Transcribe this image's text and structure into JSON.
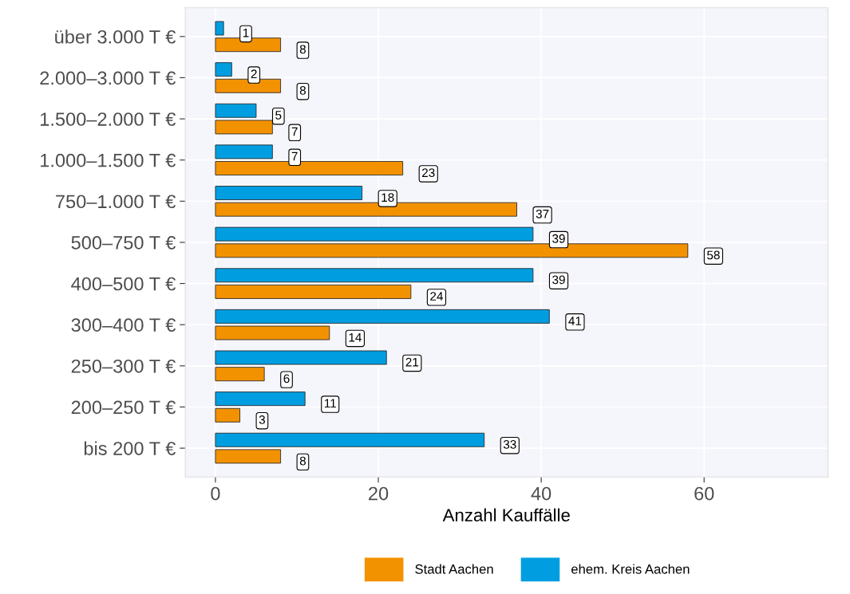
{
  "chart_data": {
    "type": "bar",
    "orientation": "horizontal",
    "xlabel": "Anzahl Kauffälle",
    "categories": [
      "über 3.000 T €",
      "2.000–3.000 T €",
      "1.500–2.000 T €",
      "1.000–1.500 T €",
      "750–1.000 T €",
      "500–750 T €",
      "400–500 T €",
      "300–400 T €",
      "250–300 T €",
      "200–250 T €",
      "bis 200 T €"
    ],
    "series": [
      {
        "name": "Stadt Aachen",
        "color": "#f39200",
        "values": [
          8,
          8,
          7,
          23,
          37,
          58,
          24,
          14,
          6,
          3,
          8
        ]
      },
      {
        "name": "ehem. Kreis Aachen",
        "color": "#009ee0",
        "values": [
          1,
          2,
          5,
          7,
          18,
          39,
          39,
          41,
          21,
          11,
          33
        ]
      }
    ],
    "xlim": [
      -3.7,
      75.2
    ],
    "xticks": [
      0,
      20,
      40,
      60
    ],
    "grid": true,
    "legend": "bottom",
    "data_labels": true
  }
}
